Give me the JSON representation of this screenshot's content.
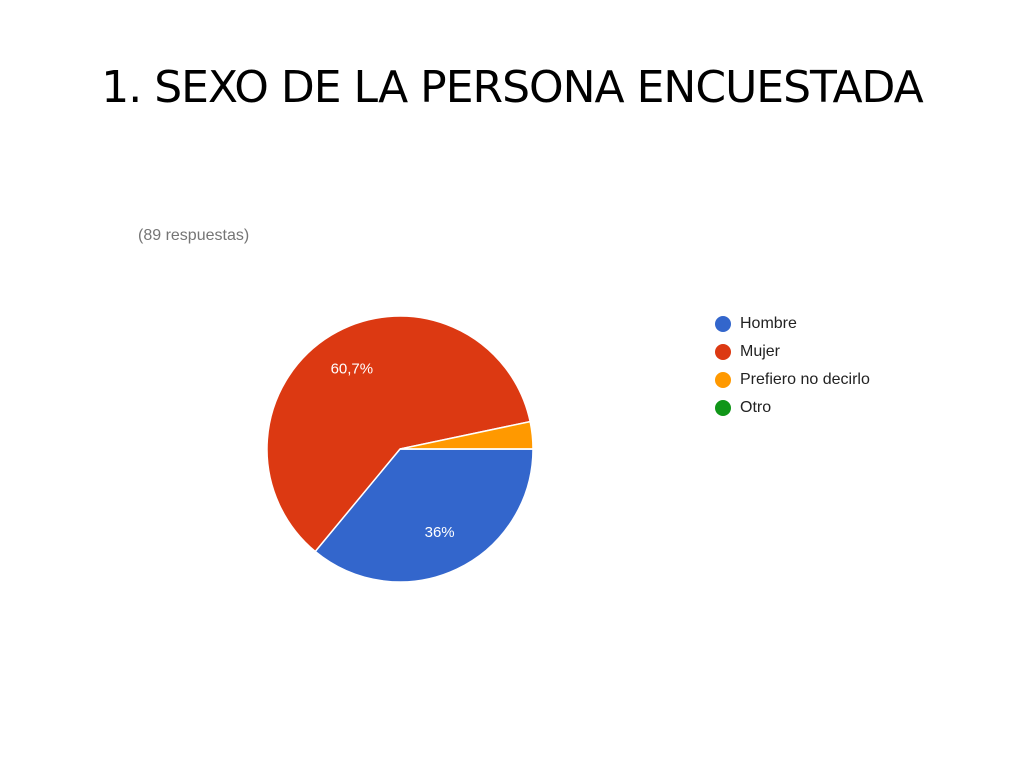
{
  "chart_data": {
    "type": "pie",
    "title": "1. SEXO DE LA PERSONA ENCUESTADA",
    "subtitle": "(89 respuestas)",
    "categories": [
      "Hombre",
      "Mujer",
      "Prefiero no decirlo",
      "Otro"
    ],
    "values": [
      36,
      60.7,
      3.3,
      0
    ],
    "value_labels": [
      "36%",
      "60,7%",
      null,
      null
    ],
    "colors": [
      "#3366cc",
      "#dc3912",
      "#ff9900",
      "#109618"
    ],
    "legend": "right"
  }
}
